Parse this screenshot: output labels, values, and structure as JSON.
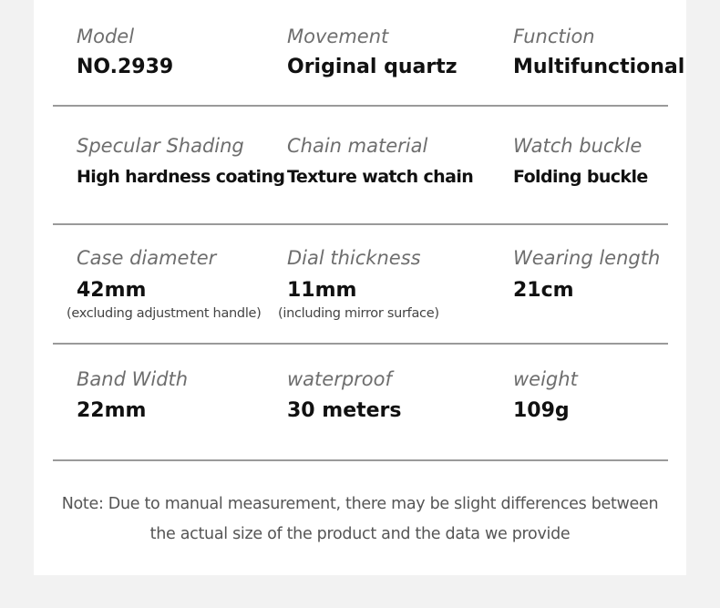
{
  "specs": [
    [
      {
        "label": "Model",
        "value": "NO.2939"
      },
      {
        "label": "Movement",
        "value": "Original quartz"
      },
      {
        "label": "Function",
        "value": "Multifunctional"
      }
    ],
    [
      {
        "label": "Specular Shading",
        "value": "High hardness coating"
      },
      {
        "label": "Chain material",
        "value": "Texture watch chain"
      },
      {
        "label": "Watch buckle",
        "value": "Folding buckle"
      }
    ],
    [
      {
        "label": "Case diameter",
        "value": "42mm"
      },
      {
        "label": "Dial thickness",
        "value": "11mm"
      },
      {
        "label": "Wearing length",
        "value": "21cm"
      }
    ],
    [
      {
        "label": "Band Width",
        "value": "22mm"
      },
      {
        "label": "waterproof",
        "value": "30 meters"
      },
      {
        "label": "weight",
        "value": "109g"
      }
    ]
  ],
  "notes_row3": {
    "case_note": "(excluding adjustment handle)",
    "dial_note": "(including mirror surface)"
  },
  "footer_note": {
    "line1": "Note: Due to manual measurement, there may be slight differences between",
    "line2": "the actual size of the product and the data we provide"
  }
}
